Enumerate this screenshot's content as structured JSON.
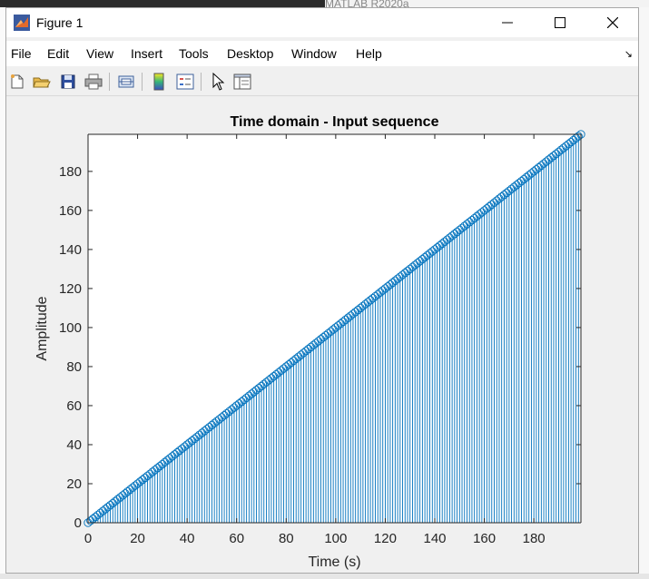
{
  "window": {
    "title": "Figure 1"
  },
  "background": {
    "matlab_title": "MATLAB R2020a"
  },
  "menu": [
    "File",
    "Edit",
    "View",
    "Insert",
    "Tools",
    "Desktop",
    "Window",
    "Help"
  ],
  "toolbar": [
    "new-figure-icon",
    "open-file-icon",
    "save-icon",
    "print-icon",
    "link-plot-icon",
    "insert-colorbar-icon",
    "insert-legend-icon",
    "pointer-icon",
    "property-inspector-icon"
  ],
  "colors": {
    "series": "#0072bd",
    "axes_bg": "#ffffff",
    "figure_bg": "#f0f0f0"
  },
  "chart_data": {
    "type": "stem",
    "title": "Time domain - Input sequence",
    "xlabel": "Time (s)",
    "ylabel": "Amplitude",
    "xlim": [
      0,
      199
    ],
    "ylim": [
      0,
      199
    ],
    "xticks": [
      0,
      20,
      40,
      60,
      80,
      100,
      120,
      140,
      160,
      180
    ],
    "yticks": [
      0,
      20,
      40,
      60,
      80,
      100,
      120,
      140,
      160,
      180
    ],
    "series": [
      {
        "x_start": 0,
        "x_end": 199,
        "x_step": 1,
        "y_equals_x": true,
        "marker": "circle"
      }
    ]
  }
}
